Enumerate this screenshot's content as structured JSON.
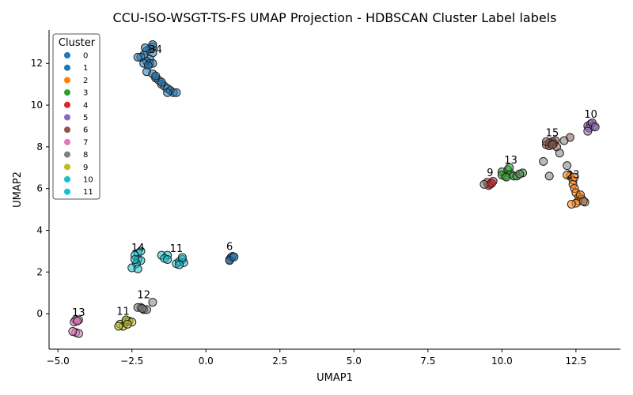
{
  "chart_data": {
    "type": "scatter",
    "title": "CCU-ISO-WSGT-TS-FS UMAP Projection - HDBSCAN Cluster Label labels",
    "xlabel": "UMAP1",
    "ylabel": "UMAP2",
    "xlim": [
      -5.3,
      14.0
    ],
    "ylim": [
      -1.7,
      13.6
    ],
    "xticks": [
      -5.0,
      -2.5,
      0.0,
      2.5,
      5.0,
      7.5,
      10.0,
      12.5
    ],
    "xtick_labels": [
      "−5.0",
      "−2.5",
      "0.0",
      "2.5",
      "5.0",
      "7.5",
      "10.0",
      "12.5"
    ],
    "yticks": [
      0,
      2,
      4,
      6,
      8,
      10,
      12
    ],
    "ytick_labels": [
      "0",
      "2",
      "4",
      "6",
      "8",
      "10",
      "12"
    ],
    "grid": false,
    "legend": {
      "title": "Cluster",
      "placement": "top-left",
      "entries": [
        {
          "label": "0",
          "color": "#1f77b4"
        },
        {
          "label": "1",
          "color": "#1f77b4"
        },
        {
          "label": "2",
          "color": "#ff7f0e"
        },
        {
          "label": "3",
          "color": "#2ca02c"
        },
        {
          "label": "4",
          "color": "#d62728"
        },
        {
          "label": "5",
          "color": "#9467bd"
        },
        {
          "label": "6",
          "color": "#8c564b"
        },
        {
          "label": "7",
          "color": "#e377c2"
        },
        {
          "label": "8",
          "color": "#7f7f7f"
        },
        {
          "label": "9",
          "color": "#bcbd22"
        },
        {
          "label": "10",
          "color": "#17becf"
        },
        {
          "label": "11",
          "color": "#17becf"
        }
      ]
    },
    "annotations": [
      {
        "text": "34",
        "x": -1.7,
        "y": 12.5
      },
      {
        "text": "10",
        "x": 13.0,
        "y": 9.4
      },
      {
        "text": "15",
        "x": 11.7,
        "y": 8.5
      },
      {
        "text": "13",
        "x": 10.3,
        "y": 7.2
      },
      {
        "text": "9",
        "x": 9.6,
        "y": 6.6
      },
      {
        "text": "23",
        "x": 12.4,
        "y": 6.5
      },
      {
        "text": "14",
        "x": -2.3,
        "y": 3.0
      },
      {
        "text": "11",
        "x": -1.0,
        "y": 2.95
      },
      {
        "text": "6",
        "x": 0.8,
        "y": 3.05
      },
      {
        "text": "12",
        "x": -2.1,
        "y": 0.75
      },
      {
        "text": "13",
        "x": -4.3,
        "y": -0.1
      },
      {
        "text": "11",
        "x": -2.8,
        "y": -0.05
      }
    ],
    "series": [
      {
        "color": "#1f77b4",
        "points": [
          [
            -1.8,
            12.8
          ],
          [
            -1.9,
            12.7
          ],
          [
            -2.0,
            12.6
          ],
          [
            -1.8,
            12.5
          ],
          [
            -2.1,
            12.4
          ],
          [
            -2.2,
            12.3
          ],
          [
            -1.9,
            12.2
          ],
          [
            -2.0,
            12.1
          ],
          [
            -1.9,
            12.0
          ],
          [
            -1.8,
            12.0
          ],
          [
            -2.1,
            12.0
          ],
          [
            -2.3,
            12.3
          ],
          [
            -1.8,
            12.9
          ],
          [
            -2.05,
            12.75
          ],
          [
            -1.95,
            11.9
          ]
        ]
      },
      {
        "color": "#1f77b4",
        "points": [
          [
            -2.0,
            11.6
          ],
          [
            -1.8,
            11.5
          ],
          [
            -1.7,
            11.3
          ],
          [
            -1.6,
            11.2
          ],
          [
            -1.5,
            11.0
          ],
          [
            -1.4,
            10.9
          ],
          [
            -1.3,
            10.8
          ],
          [
            -1.2,
            10.7
          ],
          [
            -1.1,
            10.6
          ],
          [
            -1.3,
            10.6
          ],
          [
            -1.0,
            10.6
          ],
          [
            -1.5,
            11.1
          ],
          [
            -1.7,
            11.4
          ]
        ]
      },
      {
        "color": "#ff7f0e",
        "points": [
          [
            12.3,
            6.6
          ],
          [
            12.4,
            6.4
          ],
          [
            12.4,
            6.2
          ],
          [
            12.45,
            6.0
          ],
          [
            12.5,
            5.8
          ],
          [
            12.6,
            5.6
          ],
          [
            12.7,
            5.5
          ],
          [
            12.6,
            5.4
          ],
          [
            12.5,
            5.3
          ],
          [
            12.35,
            5.25
          ],
          [
            12.8,
            5.35
          ],
          [
            12.65,
            5.7
          ],
          [
            12.2,
            6.65
          ],
          [
            12.45,
            6.55
          ]
        ]
      },
      {
        "color": "#2ca02c",
        "points": [
          [
            10.0,
            6.8
          ],
          [
            10.2,
            6.9
          ],
          [
            10.3,
            6.7
          ],
          [
            10.1,
            6.6
          ],
          [
            10.4,
            6.6
          ],
          [
            10.5,
            6.6
          ],
          [
            10.6,
            6.7
          ],
          [
            10.7,
            6.75
          ],
          [
            10.0,
            6.65
          ],
          [
            10.25,
            7.0
          ],
          [
            10.15,
            6.55
          ]
        ]
      },
      {
        "color": "#d62728",
        "points": [
          [
            9.5,
            6.3
          ],
          [
            9.6,
            6.2
          ],
          [
            9.7,
            6.35
          ],
          [
            9.55,
            6.15
          ],
          [
            9.65,
            6.25
          ]
        ]
      },
      {
        "color": "#9467bd",
        "points": [
          [
            12.9,
            9.0
          ],
          [
            13.0,
            9.1
          ],
          [
            13.1,
            9.0
          ],
          [
            12.95,
            8.9
          ],
          [
            12.9,
            8.75
          ],
          [
            13.05,
            9.15
          ],
          [
            13.15,
            8.95
          ]
        ]
      },
      {
        "color": "#8c564b",
        "points": [
          [
            11.5,
            8.1
          ],
          [
            11.6,
            8.2
          ],
          [
            11.7,
            8.25
          ],
          [
            11.8,
            8.3
          ],
          [
            11.6,
            8.05
          ],
          [
            11.75,
            8.15
          ],
          [
            11.85,
            8.0
          ],
          [
            11.5,
            8.25
          ],
          [
            12.3,
            8.45
          ],
          [
            11.7,
            8.1
          ]
        ]
      },
      {
        "color": "#e377c2",
        "points": [
          [
            -4.4,
            -0.3
          ],
          [
            -4.45,
            -0.4
          ],
          [
            -4.3,
            -0.3
          ],
          [
            -4.4,
            -0.9
          ],
          [
            -4.3,
            -0.95
          ],
          [
            -4.5,
            -0.85
          ],
          [
            -4.35,
            -0.35
          ]
        ]
      },
      {
        "color": "#7f7f7f",
        "points": [
          [
            -2.2,
            0.3
          ],
          [
            -2.1,
            0.2
          ],
          [
            -2.0,
            0.2
          ],
          [
            -2.3,
            0.3
          ],
          [
            -1.8,
            0.55
          ],
          [
            -2.15,
            0.25
          ],
          [
            11.4,
            7.3
          ],
          [
            11.95,
            7.7
          ],
          [
            12.2,
            7.1
          ],
          [
            11.6,
            6.6
          ],
          [
            12.1,
            8.3
          ],
          [
            12.75,
            5.4
          ],
          [
            9.4,
            6.2
          ],
          [
            10.6,
            6.7
          ]
        ]
      },
      {
        "color": "#bcbd22",
        "points": [
          [
            -2.9,
            -0.5
          ],
          [
            -2.8,
            -0.6
          ],
          [
            -2.7,
            -0.4
          ],
          [
            -2.6,
            -0.35
          ],
          [
            -2.7,
            -0.3
          ],
          [
            -2.5,
            -0.4
          ],
          [
            -2.95,
            -0.6
          ],
          [
            -2.65,
            -0.5
          ]
        ]
      },
      {
        "color": "#17becf",
        "points": [
          [
            -2.3,
            2.9
          ],
          [
            -2.4,
            2.8
          ],
          [
            -2.3,
            2.6
          ],
          [
            -2.2,
            2.55
          ],
          [
            -2.35,
            2.4
          ],
          [
            -2.5,
            2.2
          ],
          [
            -2.3,
            2.15
          ],
          [
            -2.2,
            3.0
          ],
          [
            -2.4,
            2.6
          ]
        ]
      },
      {
        "color": "#17becf",
        "points": [
          [
            -1.5,
            2.8
          ],
          [
            -1.3,
            2.8
          ],
          [
            -1.4,
            2.65
          ],
          [
            -1.3,
            2.6
          ],
          [
            -1.0,
            2.4
          ],
          [
            -0.9,
            2.5
          ],
          [
            -0.8,
            2.6
          ],
          [
            -0.75,
            2.45
          ],
          [
            -0.9,
            2.35
          ],
          [
            -0.8,
            2.7
          ]
        ]
      },
      {
        "color": "#1f77b4",
        "points": [
          [
            0.8,
            2.6
          ],
          [
            0.85,
            2.7
          ],
          [
            0.9,
            2.75
          ],
          [
            0.8,
            2.55
          ],
          [
            0.95,
            2.72
          ]
        ]
      }
    ]
  }
}
